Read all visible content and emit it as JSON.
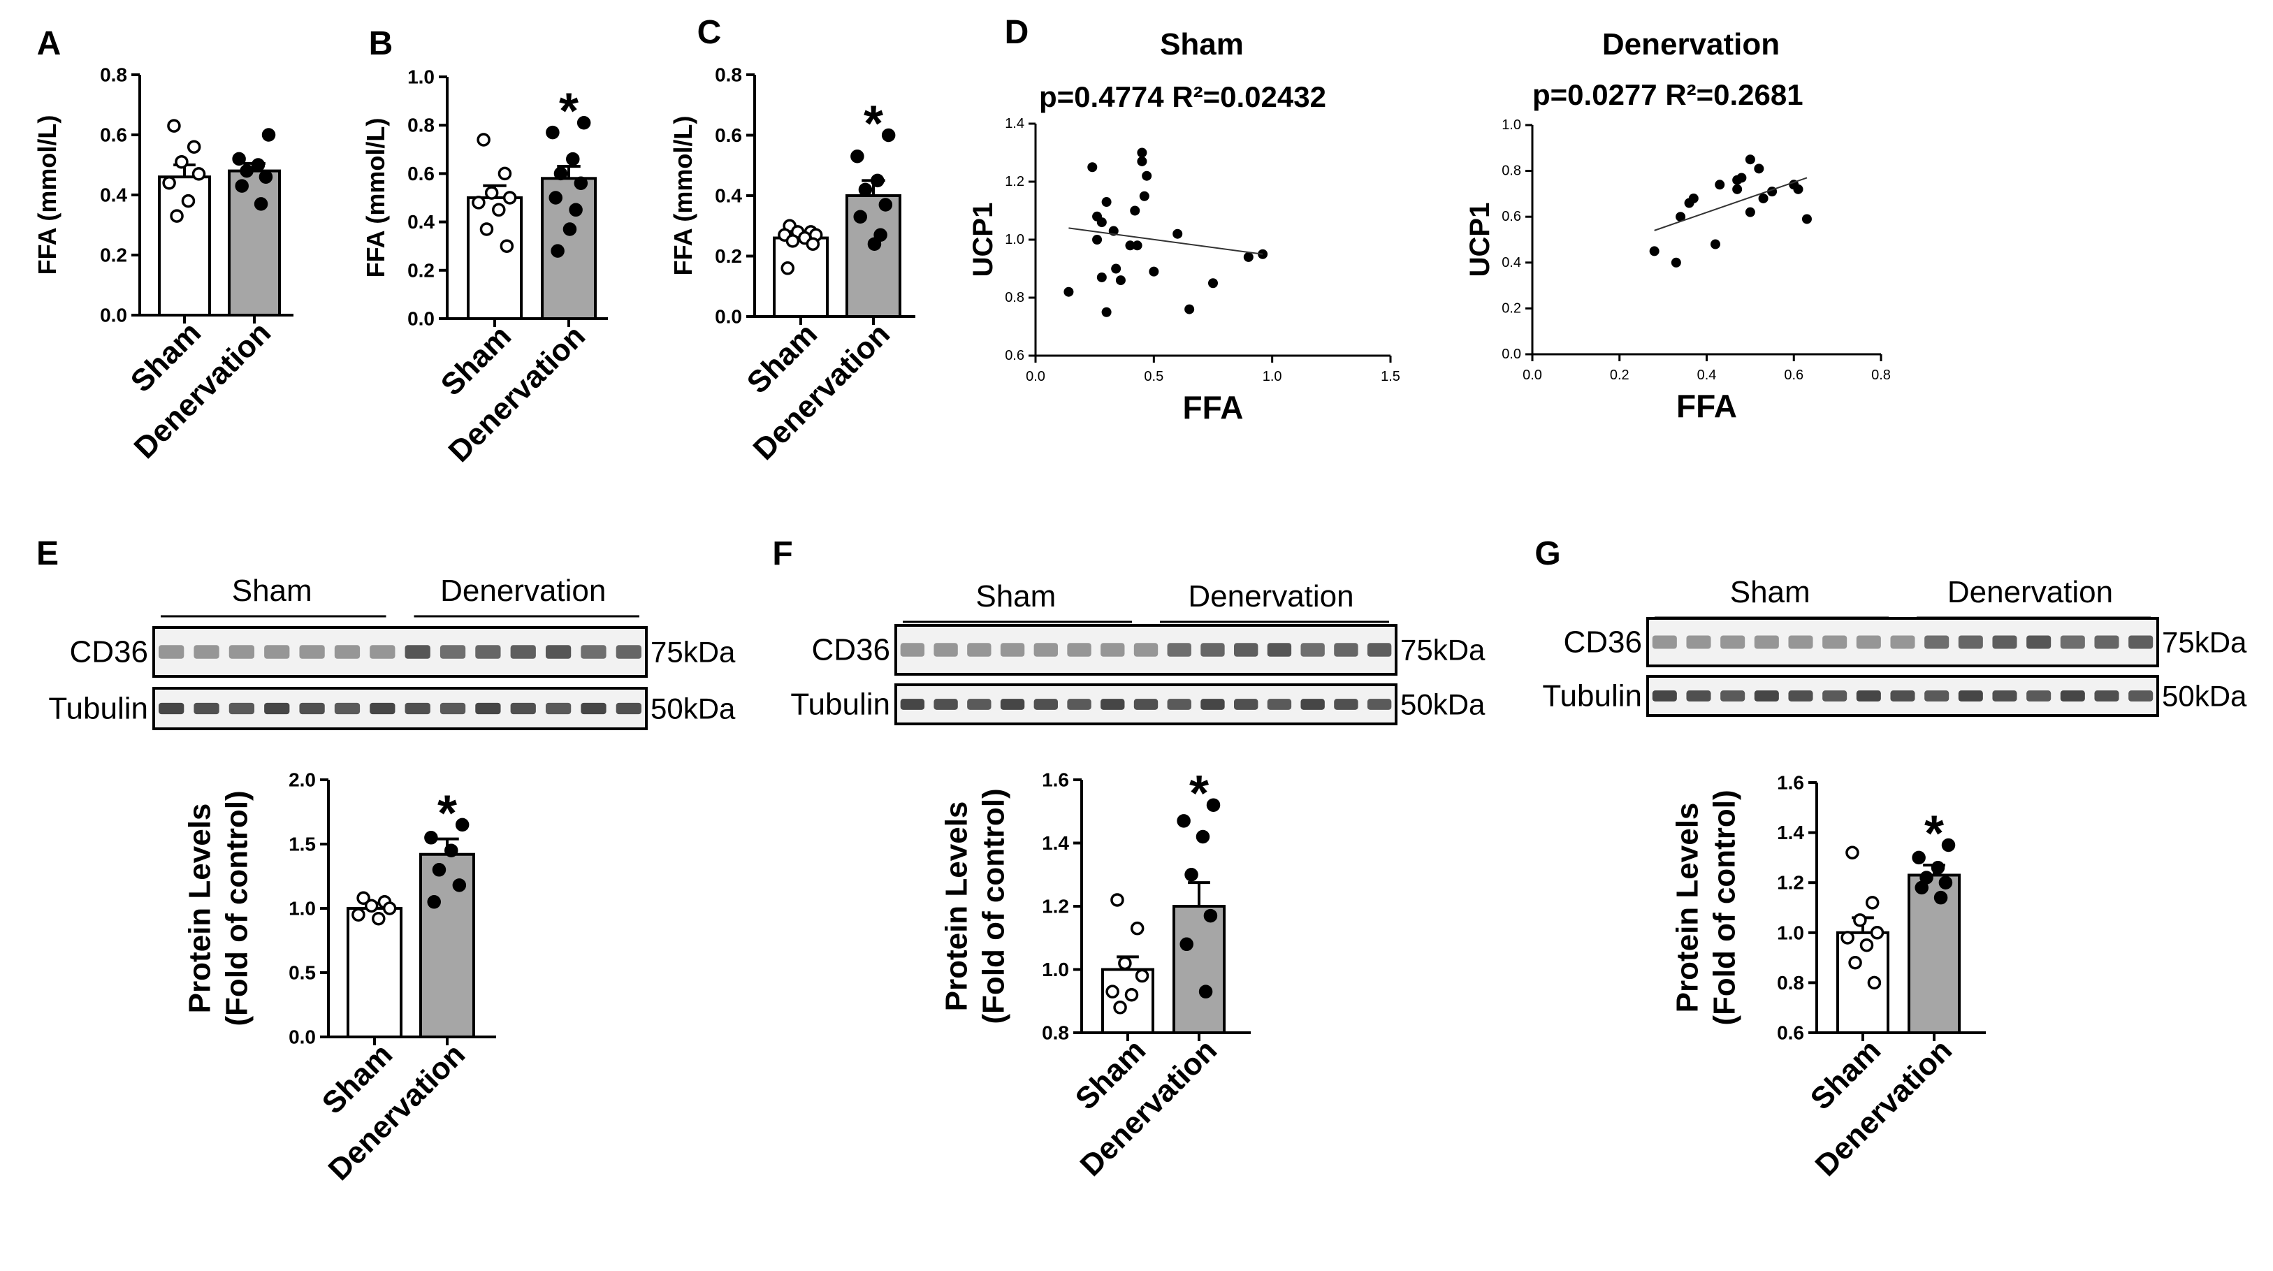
{
  "figure": {
    "panel_letters": [
      "A",
      "B",
      "C",
      "D",
      "E",
      "F",
      "G"
    ]
  },
  "chart_data": [
    {
      "panel": "A",
      "type": "bar",
      "categories": [
        "Sham",
        "Denervation"
      ],
      "ylabel": "FFA (mmol/L)",
      "ylim": [
        0,
        0.8
      ],
      "yticks": [
        "0.0",
        "0.2",
        "0.4",
        "0.6",
        "0.8"
      ],
      "ytick_values": [
        0,
        0.2,
        0.4,
        0.6,
        0.8
      ],
      "means": [
        0.46,
        0.48
      ],
      "sem": [
        0.04,
        0.025
      ],
      "points": [
        [
          0.63,
          0.56,
          0.51,
          0.47,
          0.44,
          0.38,
          0.33
        ],
        [
          0.6,
          0.52,
          0.5,
          0.48,
          0.46,
          0.43,
          0.37
        ]
      ],
      "significance": [
        "",
        ""
      ]
    },
    {
      "panel": "B",
      "type": "bar",
      "categories": [
        "Sham",
        "Denervation"
      ],
      "ylabel": "FFA (mmol/L)",
      "ylim": [
        0,
        1.0
      ],
      "yticks": [
        "0.0",
        "0.2",
        "0.4",
        "0.6",
        "0.8",
        "1.0"
      ],
      "ytick_values": [
        0,
        0.2,
        0.4,
        0.6,
        0.8,
        1.0
      ],
      "means": [
        0.5,
        0.58
      ],
      "sem": [
        0.05,
        0.05
      ],
      "points": [
        [
          0.74,
          0.6,
          0.52,
          0.5,
          0.48,
          0.45,
          0.37,
          0.3
        ],
        [
          0.81,
          0.77,
          0.66,
          0.6,
          0.56,
          0.5,
          0.45,
          0.37,
          0.28
        ]
      ],
      "significance": [
        "",
        "*"
      ]
    },
    {
      "panel": "C",
      "type": "bar",
      "categories": [
        "Sham",
        "Denervation"
      ],
      "ylabel": "FFA (mmol/L)",
      "ylim": [
        0,
        0.8
      ],
      "yticks": [
        "0.0",
        "0.2",
        "0.4",
        "0.6",
        "0.8"
      ],
      "ytick_values": [
        0,
        0.2,
        0.4,
        0.6,
        0.8
      ],
      "means": [
        0.26,
        0.4
      ],
      "sem": [
        0.015,
        0.05
      ],
      "points": [
        [
          0.3,
          0.28,
          0.28,
          0.27,
          0.27,
          0.26,
          0.25,
          0.24,
          0.16
        ],
        [
          0.6,
          0.53,
          0.45,
          0.42,
          0.37,
          0.33,
          0.27,
          0.24
        ]
      ],
      "significance": [
        "",
        "*"
      ]
    },
    {
      "panel": "D-Sham",
      "type": "scatter",
      "title": "Sham",
      "stats": "p=0.4774  R²=0.02432",
      "xlabel": "FFA",
      "ylabel": "UCP1",
      "xlim": [
        0,
        1.5
      ],
      "ylim": [
        0.6,
        1.4
      ],
      "xticks": [
        "0.0",
        "0.5",
        "1.0",
        "1.5"
      ],
      "xtick_values": [
        0,
        0.5,
        1.0,
        1.5
      ],
      "yticks": [
        "0.6",
        "0.8",
        "1.0",
        "1.2",
        "1.4"
      ],
      "ytick_values": [
        0.6,
        0.8,
        1.0,
        1.2,
        1.4
      ],
      "x": [
        0.14,
        0.24,
        0.26,
        0.28,
        0.3,
        0.33,
        0.36,
        0.4,
        0.43,
        0.45,
        0.47,
        0.28,
        0.34,
        0.46,
        0.5,
        0.42,
        0.6,
        0.65,
        0.75,
        0.9,
        0.96,
        0.3,
        0.26,
        0.45
      ],
      "y": [
        0.82,
        1.25,
        1.08,
        1.06,
        1.13,
        1.03,
        0.86,
        0.98,
        0.98,
        1.3,
        1.22,
        0.87,
        0.9,
        1.15,
        0.89,
        1.1,
        1.02,
        0.76,
        0.85,
        0.94,
        0.95,
        0.75,
        1.0,
        1.27
      ],
      "trend": [
        [
          0.14,
          1.04
        ],
        [
          0.96,
          0.95
        ]
      ]
    },
    {
      "panel": "D-Denervation",
      "type": "scatter",
      "title": "Denervation",
      "stats": "p=0.0277  R²=0.2681",
      "xlabel": "FFA",
      "ylabel": "UCP1",
      "xlim": [
        0,
        0.8
      ],
      "ylim": [
        0,
        1.0
      ],
      "xticks": [
        "0.0",
        "0.2",
        "0.4",
        "0.6",
        "0.8"
      ],
      "xtick_values": [
        0,
        0.2,
        0.4,
        0.6,
        0.8
      ],
      "yticks": [
        "0.0",
        "0.2",
        "0.4",
        "0.6",
        "0.8",
        "1.0"
      ],
      "ytick_values": [
        0,
        0.2,
        0.4,
        0.6,
        0.8,
        1.0
      ],
      "x": [
        0.28,
        0.33,
        0.34,
        0.36,
        0.37,
        0.42,
        0.43,
        0.47,
        0.48,
        0.5,
        0.5,
        0.52,
        0.53,
        0.55,
        0.6,
        0.61,
        0.63,
        0.47
      ],
      "y": [
        0.45,
        0.4,
        0.6,
        0.66,
        0.68,
        0.48,
        0.74,
        0.72,
        0.77,
        0.62,
        0.85,
        0.81,
        0.68,
        0.71,
        0.74,
        0.72,
        0.59,
        0.76
      ],
      "trend": [
        [
          0.28,
          0.54
        ],
        [
          0.63,
          0.77
        ]
      ]
    },
    {
      "panel": "E",
      "type": "bar",
      "categories": [
        "Sham",
        "Denervation"
      ],
      "ylabel": "Protein Levels",
      "ylabel2": "(Fold of control)",
      "ylim": [
        0,
        2.0
      ],
      "yticks": [
        "0.0",
        "0.5",
        "1.0",
        "1.5",
        "2.0"
      ],
      "ytick_values": [
        0,
        0.5,
        1.0,
        1.5,
        2.0
      ],
      "means": [
        1.0,
        1.42
      ],
      "sem": [
        0.04,
        0.12
      ],
      "points": [
        [
          1.08,
          1.05,
          1.02,
          1.0,
          0.95,
          0.92
        ],
        [
          1.65,
          1.55,
          1.45,
          1.3,
          1.18,
          1.05
        ]
      ],
      "significance": [
        "",
        "*"
      ]
    },
    {
      "panel": "F",
      "type": "bar",
      "categories": [
        "Sham",
        "Denervation"
      ],
      "ylabel": "Protein Levels",
      "ylabel2": "(Fold of control)",
      "ylim": [
        0.8,
        1.6
      ],
      "yticks": [
        "0.8",
        "1.0",
        "1.2",
        "1.4",
        "1.6"
      ],
      "ytick_values": [
        0.8,
        1.0,
        1.2,
        1.4,
        1.6
      ],
      "means": [
        1.0,
        1.2
      ],
      "sem": [
        0.04,
        0.075
      ],
      "points": [
        [
          1.22,
          1.13,
          1.02,
          0.98,
          0.93,
          0.92,
          0.88
        ],
        [
          1.52,
          1.47,
          1.42,
          1.3,
          1.17,
          1.08,
          0.93
        ]
      ],
      "significance": [
        "",
        "*"
      ]
    },
    {
      "panel": "G",
      "type": "bar",
      "categories": [
        "Sham",
        "Denervation"
      ],
      "ylabel": "Protein Levels",
      "ylabel2": "(Fold of control)",
      "ylim": [
        0.6,
        1.6
      ],
      "yticks": [
        "0.6",
        "0.8",
        "1.0",
        "1.2",
        "1.4",
        "1.6"
      ],
      "ytick_values": [
        0.6,
        0.8,
        1.0,
        1.2,
        1.4,
        1.6
      ],
      "means": [
        1.0,
        1.23
      ],
      "sem": [
        0.06,
        0.04
      ],
      "points": [
        [
          1.32,
          1.12,
          1.05,
          1.0,
          0.98,
          0.95,
          0.88,
          0.8
        ],
        [
          1.35,
          1.3,
          1.26,
          1.22,
          1.2,
          1.18,
          1.14
        ]
      ],
      "significance": [
        "",
        "*"
      ]
    }
  ],
  "blots": [
    {
      "panel": "E",
      "group_labels": [
        "Sham",
        "Denervation"
      ],
      "rows": [
        {
          "protein": "CD36",
          "size": "75kDa"
        },
        {
          "protein": "Tubulin",
          "size": "50kDa"
        }
      ],
      "lanes": 14
    },
    {
      "panel": "F",
      "group_labels": [
        "Sham",
        "Denervation"
      ],
      "rows": [
        {
          "protein": "CD36",
          "size": "75kDa"
        },
        {
          "protein": "Tubulin",
          "size": "50kDa"
        }
      ],
      "lanes": 15
    },
    {
      "panel": "G",
      "group_labels": [
        "Sham",
        "Denervation"
      ],
      "rows": [
        {
          "protein": "CD36",
          "size": "75kDa"
        },
        {
          "protein": "Tubulin",
          "size": "50kDa"
        }
      ],
      "lanes": 15
    }
  ]
}
